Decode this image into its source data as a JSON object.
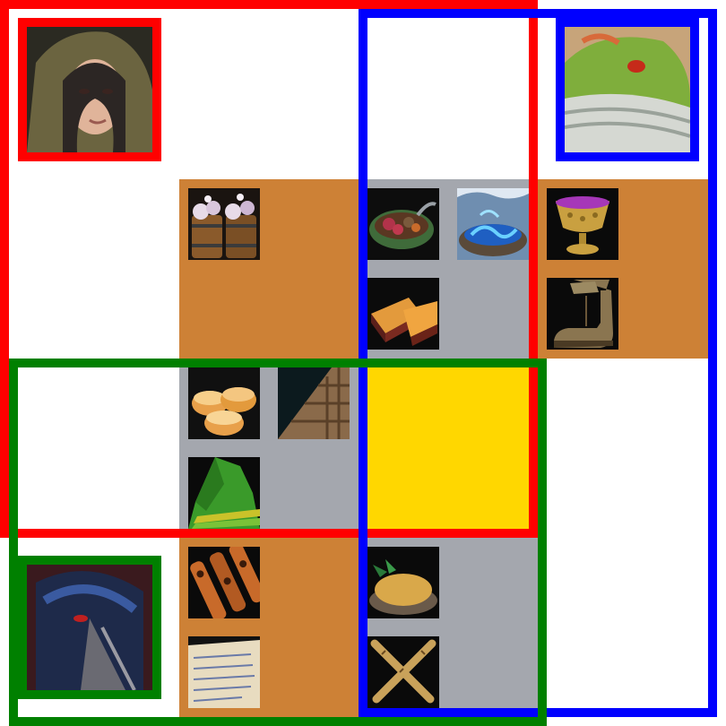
{
  "board": {
    "colors": {
      "orange": "#CD8136",
      "gray": "#A4A7AE",
      "gold": "#FFD700",
      "white": "#FFFFFF",
      "red": "#FF0000",
      "blue": "#0000FF",
      "green": "#008000"
    }
  },
  "players": [
    {
      "name": "hooded-woman",
      "color": "red"
    },
    {
      "name": "green-dragon",
      "color": "blue"
    },
    {
      "name": "masked-rogue",
      "color": "green"
    }
  ],
  "items": [
    "barrels-of-salt",
    "bowl-of-stew",
    "blue-water-bowl",
    "golden-goblet",
    "pie-slice",
    "leather-boot",
    "biscuits",
    "roof-tiles",
    "green-cloak",
    "skewered-meat",
    "parchment-scroll",
    "mashed-food-bowl",
    "crossed-bamboo"
  ]
}
